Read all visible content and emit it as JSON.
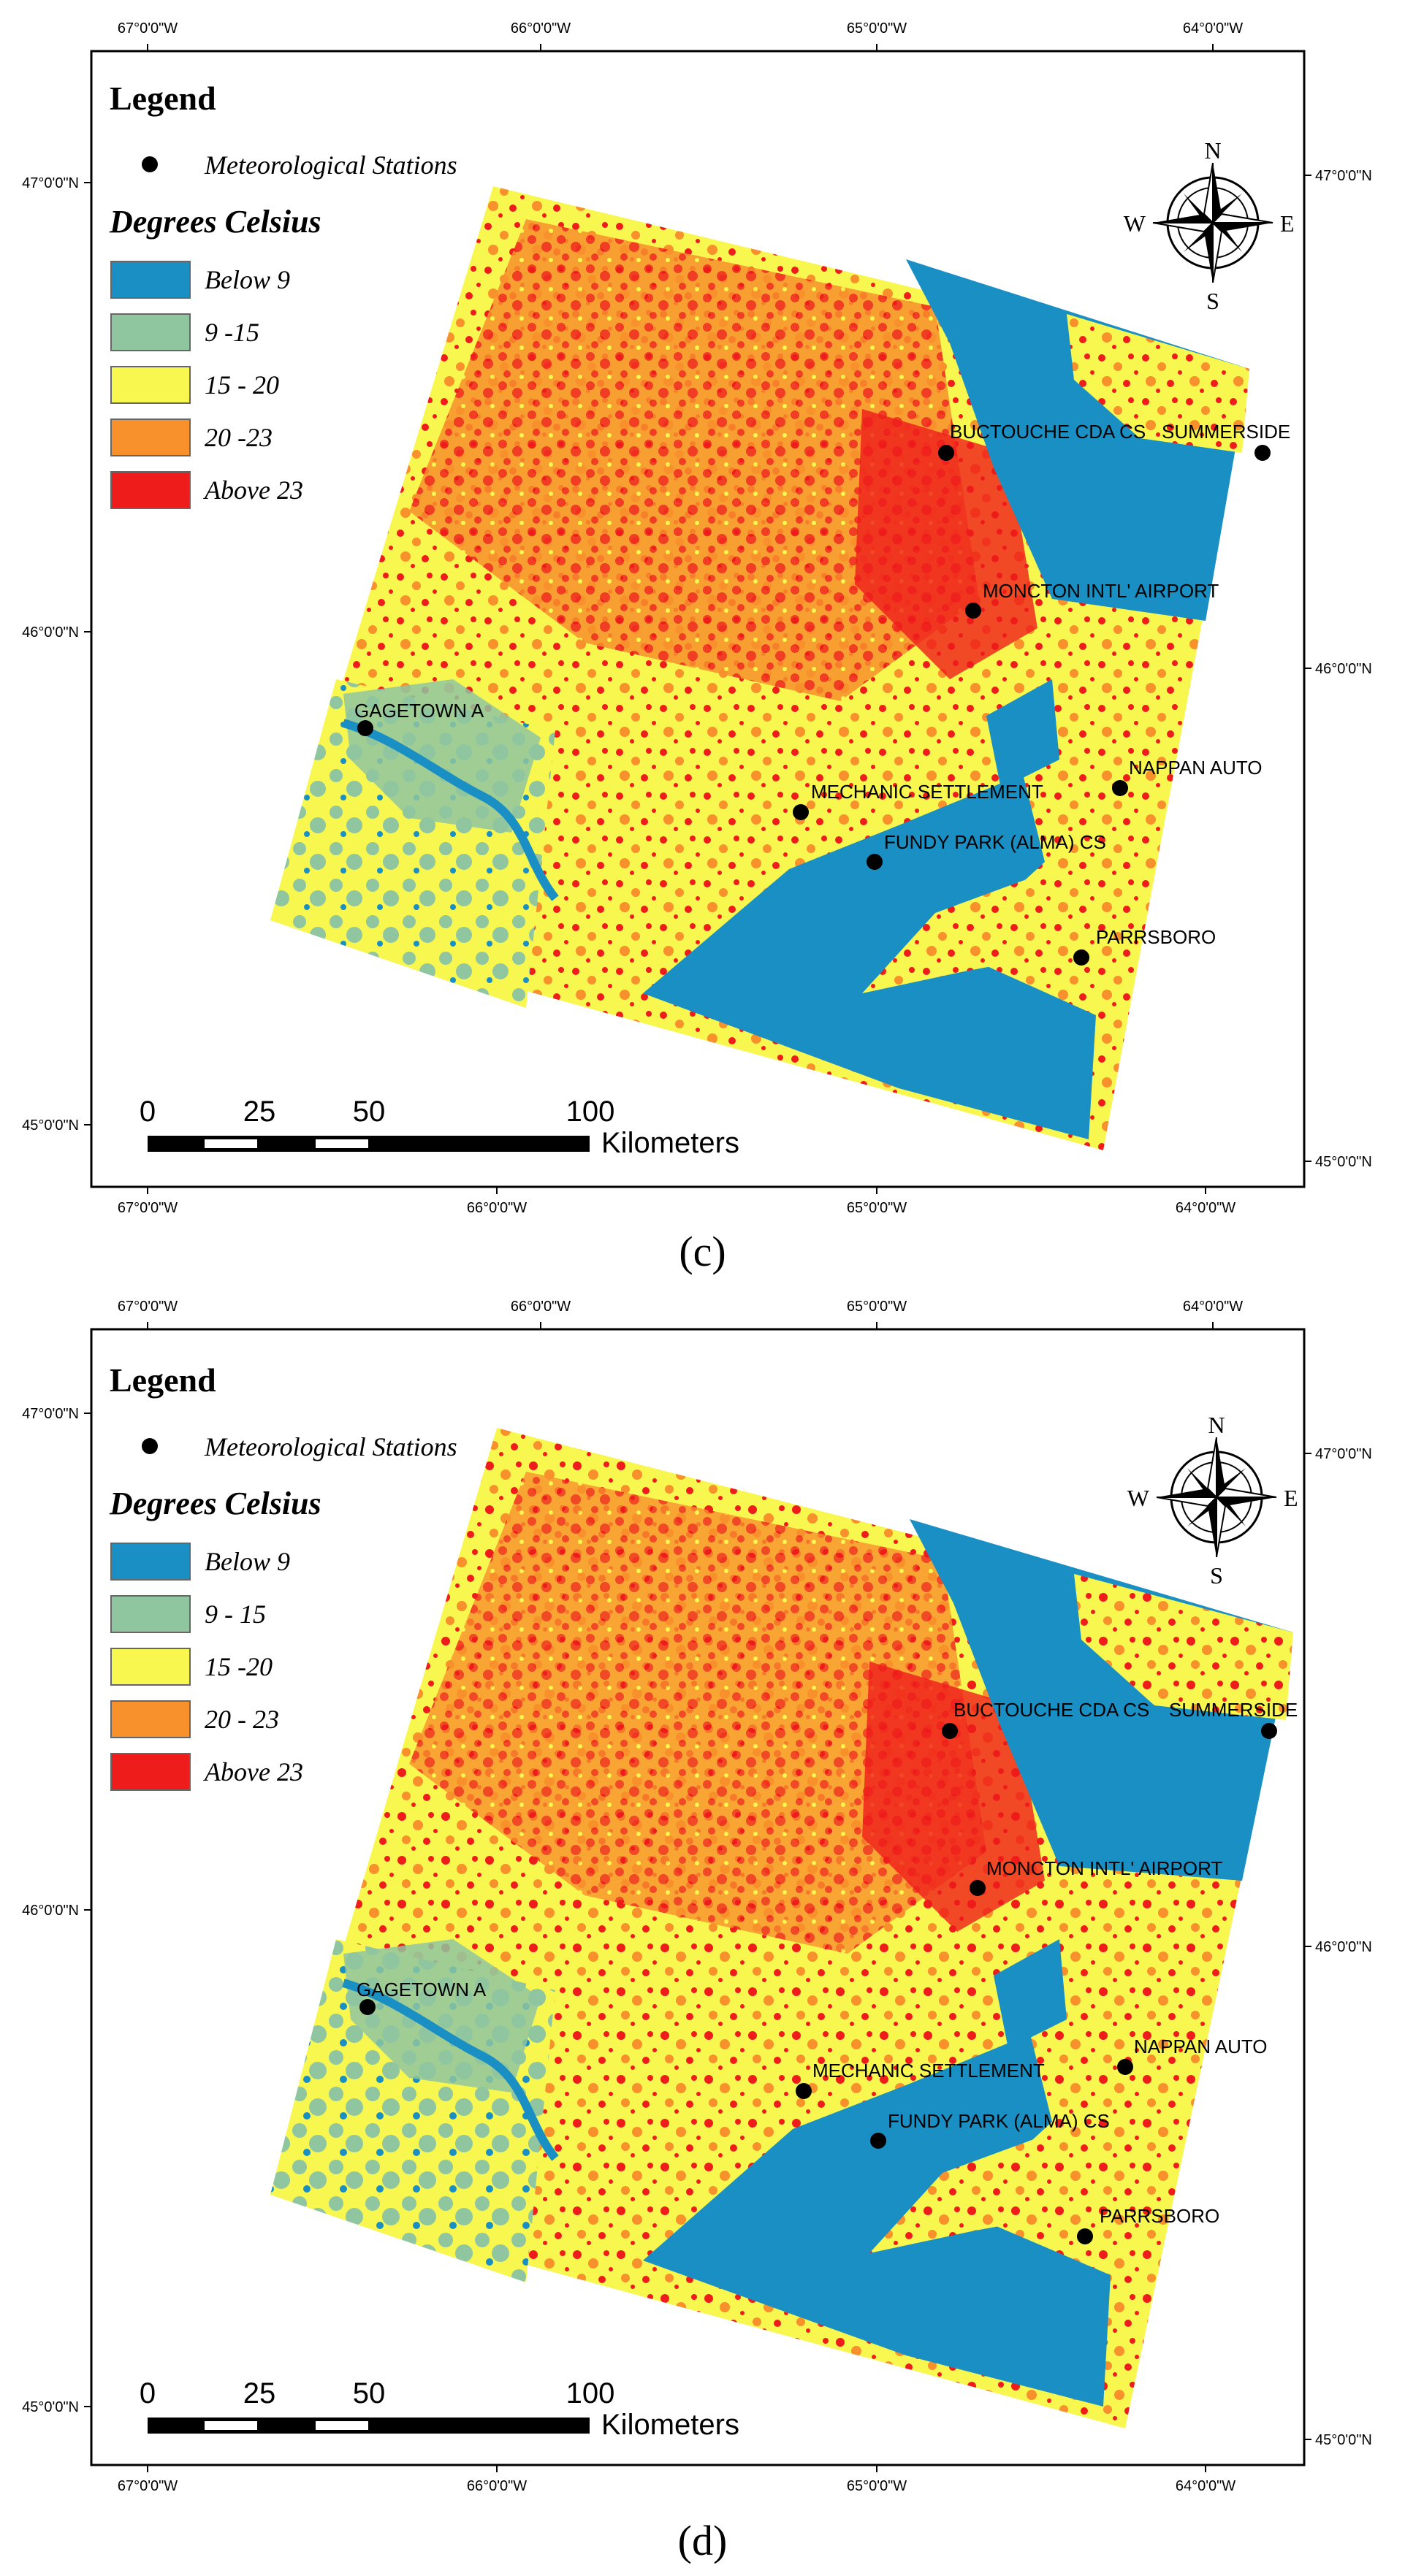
{
  "panels": [
    {
      "caption": "(c)",
      "legend": {
        "title": "Legend",
        "stations_label": "Meteorological Stations",
        "units_title": "Degrees Celsius",
        "classes": [
          {
            "label": "Below 9",
            "color": "#1a8fc4"
          },
          {
            "label": "9 -15",
            "color": "#8fc6a0"
          },
          {
            "label": "15 - 20",
            "color": "#f8f750"
          },
          {
            "label": "20 -23",
            "color": "#f8902c"
          },
          {
            "label": "Above 23",
            "color": "#ef1c1c"
          }
        ]
      },
      "top_ticks": [
        "67°0'0\"W",
        "66°0'0\"W",
        "65°0'0\"W",
        "64°0'0\"W"
      ],
      "bottom_ticks": [
        "67°0'0\"W",
        "66°0'0\"W",
        "65°0'0\"W",
        "64°0'0\"W"
      ],
      "left_ticks": [
        "47°0'0\"N",
        "46°0'0\"N",
        "45°0'0\"N"
      ],
      "right_ticks": [
        "47°0'0\"N",
        "46°0'0\"N",
        "45°0'0\"N"
      ],
      "compass": [
        "N",
        "E",
        "S",
        "W"
      ],
      "scale": {
        "ticks": [
          "0",
          "25",
          "50",
          "100"
        ],
        "unit": "Kilometers"
      },
      "stations": [
        "BUCTOUCHE CDA CS",
        "SUMMERSIDE",
        "MONCTON INTL' AIRPORT",
        "GAGETOWN A",
        "NAPPAN AUTO",
        "MECHANIC SETTLEMENT",
        "FUNDY PARK (ALMA) CS",
        "PARRSBORO"
      ]
    },
    {
      "caption": "(d)",
      "legend": {
        "title": "Legend",
        "stations_label": "Meteorological Stations",
        "units_title": "Degrees Celsius",
        "classes": [
          {
            "label": "Below 9",
            "color": "#1a8fc4"
          },
          {
            "label": "9 - 15",
            "color": "#8fc6a0"
          },
          {
            "label": "15 -20",
            "color": "#f8f750"
          },
          {
            "label": "20 - 23",
            "color": "#f8902c"
          },
          {
            "label": "Above 23",
            "color": "#ef1c1c"
          }
        ]
      },
      "top_ticks": [
        "67°0'0\"W",
        "66°0'0\"W",
        "65°0'0\"W",
        "64°0'0\"W"
      ],
      "bottom_ticks": [
        "67°0'0\"W",
        "66°0'0\"W",
        "65°0'0\"W",
        "64°0'0\"W"
      ],
      "left_ticks": [
        "47°0'0\"N",
        "46°0'0\"N",
        "45°0'0\"N"
      ],
      "right_ticks": [
        "47°0'0\"N",
        "46°0'0\"N",
        "45°0'0\"N"
      ],
      "compass": [
        "N",
        "E",
        "S",
        "W"
      ],
      "scale": {
        "ticks": [
          "0",
          "25",
          "50",
          "100"
        ],
        "unit": "Kilometers"
      },
      "stations": [
        "BUCTOUCHE CDA CS",
        "SUMMERSIDE",
        "MONCTON INTL' AIRPORT",
        "GAGETOWN A",
        "NAPPAN AUTO",
        "MECHANIC SETTLEMENT",
        "FUNDY PARK (ALMA) CS",
        "PARRSBORO"
      ]
    }
  ]
}
